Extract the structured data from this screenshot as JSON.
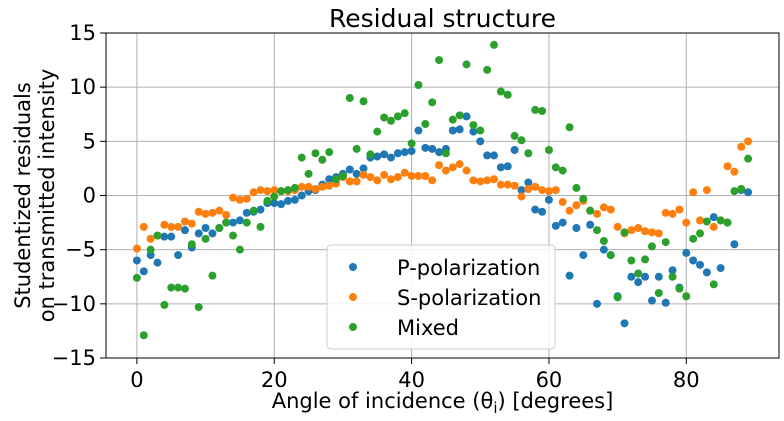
{
  "chart_data": {
    "type": "scatter",
    "title": "Residual structure",
    "xlabel": "Angle of incidence (θ",
    "xlabel_sub": "i",
    "xlabel_tail": ") [degrees]",
    "ylabel_line1": "Studentized residuals",
    "ylabel_line2": "on transmitted intensity",
    "xlim": [
      -4.5,
      93.5
    ],
    "ylim": [
      -15,
      15
    ],
    "xticks": [
      0,
      20,
      40,
      60,
      80
    ],
    "yticks": [
      -15,
      -10,
      -5,
      0,
      5,
      10,
      15
    ],
    "grid": true,
    "legend_position": "lower-center",
    "series": [
      {
        "name": "P-polarization",
        "color": "#1f77b4",
        "x": [
          0,
          1,
          2,
          3,
          4,
          5,
          6,
          7,
          8,
          9,
          10,
          11,
          12,
          13,
          14,
          15,
          16,
          17,
          18,
          19,
          20,
          21,
          22,
          23,
          24,
          25,
          26,
          27,
          28,
          29,
          30,
          31,
          32,
          33,
          34,
          35,
          36,
          37,
          38,
          39,
          40,
          41,
          42,
          43,
          44,
          45,
          46,
          47,
          48,
          49,
          50,
          51,
          52,
          53,
          54,
          55,
          56,
          57,
          58,
          59,
          60,
          61,
          62,
          63,
          64,
          65,
          66,
          67,
          68,
          69,
          70,
          71,
          72,
          73,
          74,
          75,
          76,
          77,
          78,
          79,
          80,
          81,
          82,
          83,
          84,
          85,
          86,
          87,
          88,
          89
        ],
        "y": [
          -6.0,
          -7.0,
          -5.5,
          -6.2,
          -3.8,
          -3.8,
          -5.5,
          -3.2,
          -4.8,
          -3.5,
          -3.0,
          -3.5,
          -3.0,
          -2.5,
          -2.5,
          -2.3,
          -1.6,
          -1.5,
          -1.3,
          -0.7,
          -0.7,
          -0.8,
          -0.5,
          -0.4,
          0.0,
          0.4,
          0.5,
          1.0,
          1.5,
          1.7,
          2.0,
          2.4,
          2.0,
          2.5,
          3.5,
          3.6,
          3.8,
          3.5,
          3.9,
          4.0,
          4.1,
          6.0,
          4.4,
          4.3,
          4.0,
          4.3,
          6.0,
          6.1,
          7.3,
          5.9,
          5.0,
          3.7,
          3.7,
          2.6,
          2.7,
          4.2,
          0.5,
          1.2,
          -1.3,
          -1.5,
          -0.4,
          -2.8,
          -2.5,
          -7.4,
          -3.0,
          -5.5,
          -2.7,
          -10.0,
          -5.0,
          -5.5,
          -9.3,
          -11.8,
          -7.5,
          -8.0,
          -7.5,
          -9.7,
          -7.5,
          -9.9,
          -6.9,
          -8.5,
          -5.3,
          -6.0,
          -6.4,
          -7.1,
          -2.0,
          -6.7,
          -2.5,
          -4.5,
          0.5,
          0.3
        ]
      },
      {
        "name": "S-polarization",
        "color": "#ff7f0e",
        "x": [
          0,
          1,
          2,
          3,
          4,
          5,
          6,
          7,
          8,
          9,
          10,
          11,
          12,
          13,
          14,
          15,
          16,
          17,
          18,
          19,
          20,
          21,
          22,
          23,
          24,
          25,
          26,
          27,
          28,
          29,
          30,
          31,
          32,
          33,
          34,
          35,
          36,
          37,
          38,
          39,
          40,
          41,
          42,
          43,
          44,
          45,
          46,
          47,
          48,
          49,
          50,
          51,
          52,
          53,
          54,
          55,
          56,
          57,
          58,
          59,
          60,
          61,
          62,
          63,
          64,
          65,
          66,
          67,
          68,
          69,
          70,
          71,
          72,
          73,
          74,
          75,
          76,
          77,
          78,
          79,
          80,
          81,
          82,
          83,
          84,
          85,
          86,
          87,
          88,
          89
        ],
        "y": [
          -4.9,
          -2.9,
          -4.0,
          -3.7,
          -2.7,
          -2.9,
          -2.9,
          -2.4,
          -2.6,
          -1.5,
          -1.7,
          -1.6,
          -1.4,
          -1.8,
          -0.2,
          -0.4,
          -0.3,
          0.3,
          0.5,
          0.4,
          0.5,
          0.4,
          0.4,
          0.5,
          0.8,
          0.8,
          0.6,
          0.8,
          0.9,
          1.1,
          1.7,
          1.3,
          1.3,
          1.9,
          1.7,
          1.4,
          1.9,
          1.5,
          1.7,
          2.1,
          1.8,
          1.8,
          1.8,
          1.4,
          2.8,
          2.3,
          2.6,
          2.9,
          2.3,
          1.4,
          1.3,
          1.4,
          1.5,
          1.0,
          1.0,
          0.9,
          -0.1,
          0.6,
          0.8,
          0.5,
          0.4,
          0.5,
          -0.6,
          -1.4,
          -0.9,
          -0.5,
          -1.4,
          -1.7,
          -1.1,
          -1.3,
          -2.9,
          -3.5,
          -3.2,
          -3.0,
          -3.3,
          -3.4,
          -3.5,
          -1.6,
          -1.7,
          -1.3,
          -2.5,
          0.3,
          -2.3,
          0.5,
          -2.9,
          -2.3,
          2.7,
          2.2,
          4.5,
          5.0
        ]
      },
      {
        "name": "Mixed",
        "color": "#2ca02c",
        "x": [
          0,
          1,
          2,
          3,
          4,
          5,
          6,
          7,
          8,
          9,
          10,
          11,
          12,
          13,
          14,
          15,
          16,
          17,
          18,
          19,
          20,
          21,
          22,
          23,
          24,
          25,
          26,
          27,
          28,
          29,
          30,
          31,
          32,
          33,
          34,
          35,
          36,
          37,
          38,
          39,
          40,
          41,
          42,
          43,
          44,
          45,
          46,
          47,
          48,
          49,
          50,
          51,
          52,
          53,
          54,
          55,
          56,
          57,
          58,
          59,
          60,
          61,
          62,
          63,
          64,
          65,
          66,
          67,
          68,
          69,
          70,
          71,
          72,
          73,
          74,
          75,
          76,
          77,
          78,
          79,
          80,
          81,
          82,
          83,
          84,
          85,
          86,
          87,
          88,
          89
        ],
        "y": [
          -7.6,
          -12.9,
          -5.0,
          -3.7,
          -10.1,
          -8.5,
          -8.5,
          -8.6,
          -4.5,
          -10.3,
          -4.0,
          -7.4,
          -3.0,
          -2.5,
          -3.7,
          -5.0,
          -2.5,
          -1.4,
          -2.9,
          -0.5,
          -0.1,
          0.4,
          0.5,
          0.7,
          3.5,
          2.0,
          3.9,
          3.3,
          4.0,
          1.5,
          1.8,
          9.0,
          4.3,
          8.7,
          3.8,
          5.9,
          7.2,
          6.9,
          7.3,
          7.6,
          4.8,
          10.2,
          6.6,
          8.6,
          12.5,
          3.9,
          7.0,
          7.4,
          12.1,
          6.5,
          6.0,
          11.6,
          13.9,
          9.6,
          9.3,
          5.5,
          5.1,
          3.9,
          7.9,
          7.8,
          4.2,
          2.6,
          2.3,
          6.3,
          0.7,
          -0.3,
          -1.4,
          -3.2,
          -4.2,
          -5.5,
          -9.4,
          -3.4,
          -6.0,
          -7.2,
          -5.9,
          -4.7,
          -9.0,
          -4.3,
          -7.5,
          -8.6,
          -9.3,
          -4.0,
          -3.5,
          -2.4,
          -8.2,
          -2.3,
          -2.5,
          0.4,
          0.6,
          3.4
        ]
      }
    ]
  }
}
